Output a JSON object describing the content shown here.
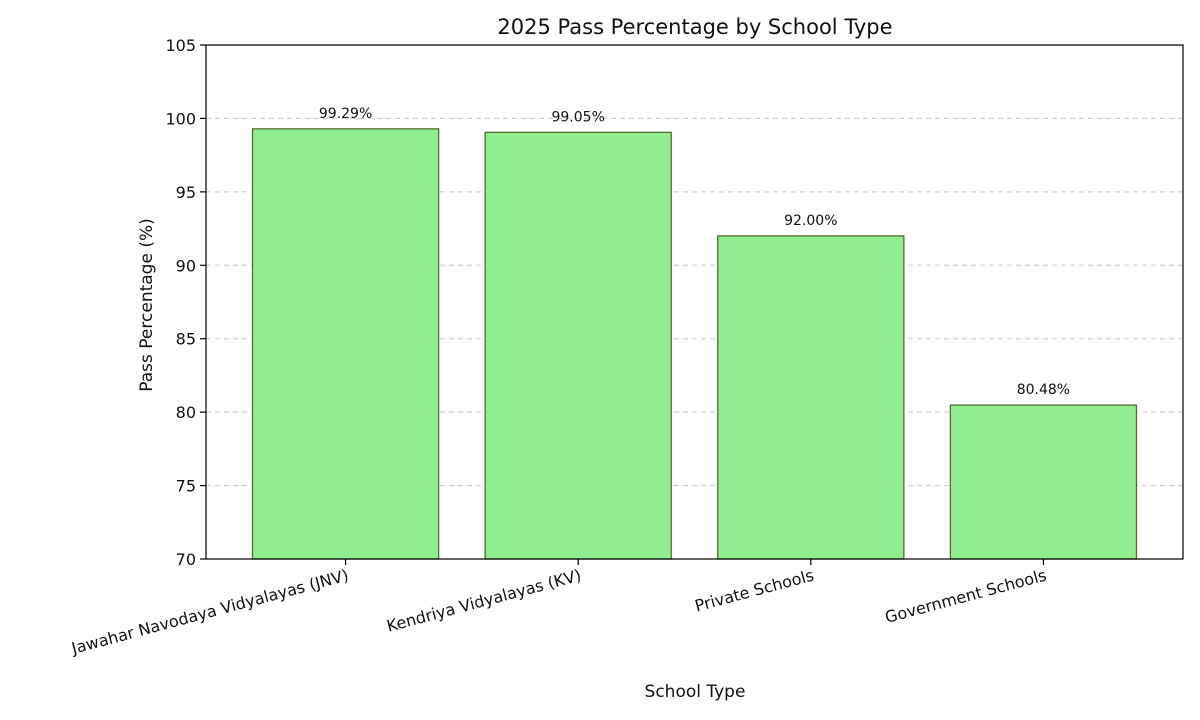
{
  "chart_data": {
    "type": "bar",
    "title": "2025 Pass Percentage by School Type",
    "xlabel": "School Type",
    "ylabel": "Pass Percentage (%)",
    "categories": [
      "Jawahar Navodaya Vidyalayas (JNV)",
      "Kendriya Vidyalayas (KV)",
      "Private Schools",
      "Government Schools"
    ],
    "values": [
      99.29,
      99.05,
      92.0,
      80.48
    ],
    "value_labels": [
      "99.29%",
      "99.05%",
      "92.00%",
      "80.48%"
    ],
    "ylim": [
      70,
      105
    ],
    "yticks": [
      70,
      75,
      80,
      85,
      90,
      95,
      100,
      105
    ],
    "grid": "horizontal dashed",
    "legend": "none",
    "colors": {
      "bar_fill": "#90ee90",
      "bar_edge": "#556b2f",
      "grid": "#c8c8c8",
      "axis": "#000000",
      "text": "#111111"
    }
  }
}
